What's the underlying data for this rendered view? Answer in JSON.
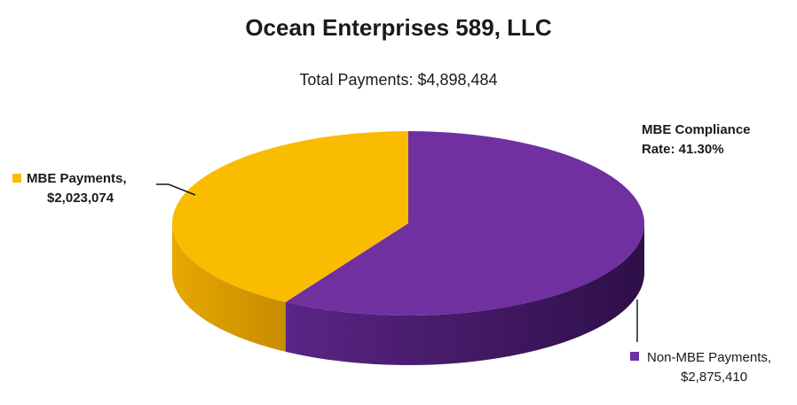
{
  "chart_data": {
    "type": "pie",
    "title": "Ocean Enterprises 589, LLC",
    "subtitle": "Total  Payments: $4,898,484",
    "annotation": [
      "MBE Compliance",
      "Rate: 41.30%"
    ],
    "slices": [
      {
        "label_line1": "MBE Payments,",
        "label_line2": "$2,023,074",
        "value": 2023074,
        "color": "#f9bc00",
        "side_color": "#d99d00"
      },
      {
        "label_line1": "Non-MBE Payments,",
        "label_line2": "$2,875,410",
        "value": 2875410,
        "color": "#7030a0",
        "side_color": "#4a1a70"
      }
    ],
    "legend_placement": "inline-labels",
    "style": "3d"
  }
}
